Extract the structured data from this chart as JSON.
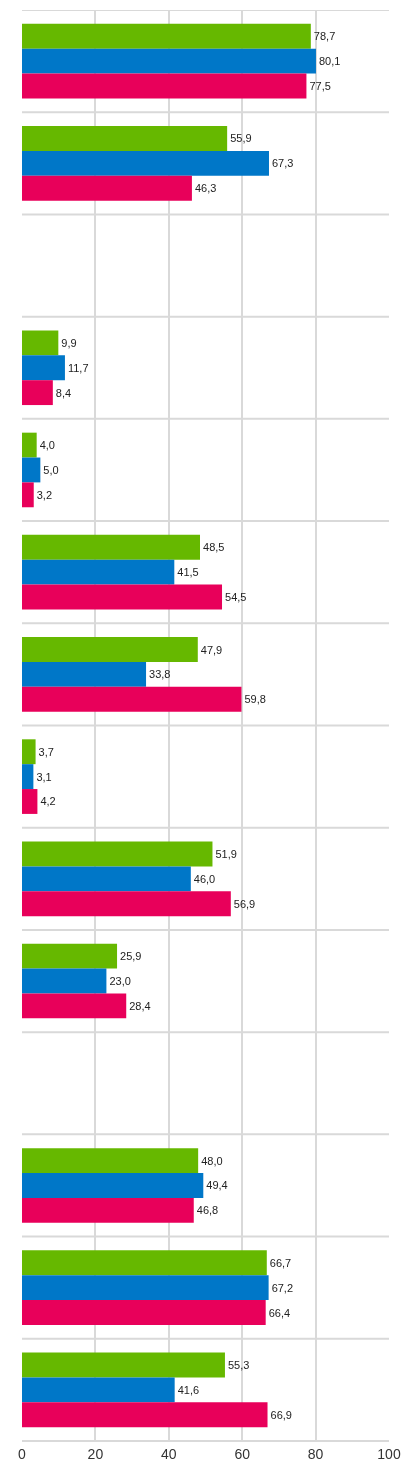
{
  "chart_data": {
    "type": "bar",
    "orientation": "horizontal",
    "categories": [
      null,
      null,
      null,
      null,
      null,
      null,
      null,
      null,
      null,
      null,
      null,
      null,
      null,
      null
    ],
    "series": [
      {
        "color": "#66b800",
        "values": [
          78.7,
          55.9,
          null,
          9.9,
          4.0,
          48.5,
          47.9,
          3.7,
          51.9,
          25.9,
          null,
          48.0,
          66.7,
          55.3
        ],
        "value_labels": [
          "78,7",
          "55,9",
          null,
          "9,9",
          "4,0",
          "48,5",
          "47,9",
          "3,7",
          "51,9",
          "25,9",
          null,
          "48,0",
          "66,7",
          "55,3"
        ]
      },
      {
        "color": "#0077c8",
        "values": [
          80.1,
          67.3,
          null,
          11.7,
          5.0,
          41.5,
          33.8,
          3.1,
          46.0,
          23.0,
          null,
          49.4,
          67.2,
          41.6
        ],
        "value_labels": [
          "80,1",
          "67,3",
          null,
          "11,7",
          "5,0",
          "41,5",
          "33,8",
          "3,1",
          "46,0",
          "23,0",
          null,
          "49,4",
          "67,2",
          "41,6"
        ]
      },
      {
        "color": "#e8005a",
        "values": [
          77.5,
          46.3,
          null,
          8.4,
          3.2,
          54.5,
          59.8,
          4.2,
          56.9,
          28.4,
          null,
          46.8,
          66.4,
          66.9
        ],
        "value_labels": [
          "77,5",
          "46,3",
          null,
          "8,4",
          "3,2",
          "54,5",
          "59,8",
          "4,2",
          "56,9",
          "28,4",
          null,
          "46,8",
          "66,4",
          "66,9"
        ]
      }
    ],
    "xlim": [
      0,
      100
    ],
    "xticks": [
      0,
      20,
      40,
      60,
      80,
      100
    ],
    "grid": true,
    "tick_labels": "x"
  }
}
